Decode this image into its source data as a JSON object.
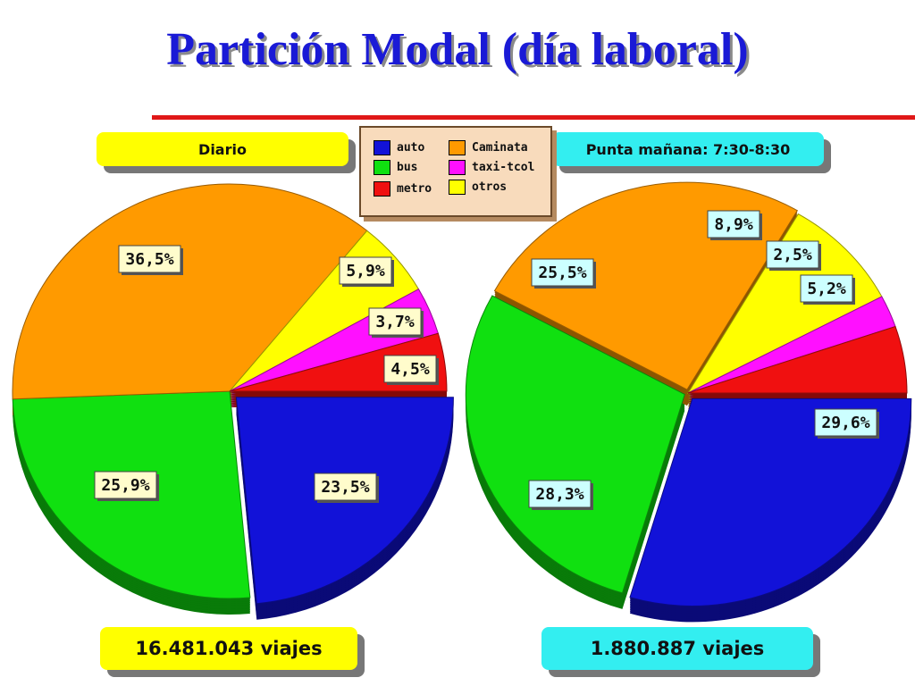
{
  "title": "Partición Modal  (día laboral)",
  "legend": {
    "items": [
      {
        "label": "auto",
        "color": "#1212d8"
      },
      {
        "label": "Caminata",
        "color": "#ff9a00"
      },
      {
        "label": "bus",
        "color": "#10e010"
      },
      {
        "label": "taxi-tcol",
        "color": "#ff10ff"
      },
      {
        "label": "metro",
        "color": "#f01010"
      },
      {
        "label": "otros",
        "color": "#ffff00"
      }
    ]
  },
  "chart_data": [
    {
      "type": "pie",
      "title": "Diario",
      "footer": "16.481.043 viajes",
      "slices": [
        {
          "label": "auto",
          "value": 23.5,
          "text": "23,5%",
          "color": "#1212d8"
        },
        {
          "label": "bus",
          "value": 25.9,
          "text": "25,9%",
          "color": "#10e010"
        },
        {
          "label": "Caminata",
          "value": 36.5,
          "text": "36,5%",
          "color": "#ff9a00"
        },
        {
          "label": "otros",
          "value": 5.9,
          "text": "5,9%",
          "color": "#ffff00"
        },
        {
          "label": "taxi-tcol",
          "value": 3.7,
          "text": "3,7%",
          "color": "#ff10ff"
        },
        {
          "label": "metro",
          "value": 4.5,
          "text": "4,5%",
          "color": "#f01010"
        }
      ]
    },
    {
      "type": "pie",
      "title": "Punta mañana: 7:30-8:30",
      "footer": "1.880.887 viajes",
      "slices": [
        {
          "label": "auto",
          "value": 29.6,
          "text": "29,6%",
          "color": "#1212d8"
        },
        {
          "label": "bus",
          "value": 28.3,
          "text": "28,3%",
          "color": "#10e010"
        },
        {
          "label": "Caminata",
          "value": 25.5,
          "text": "25,5%",
          "color": "#ff9a00"
        },
        {
          "label": "otros",
          "value": 8.9,
          "text": "8,9%",
          "color": "#ffff00"
        },
        {
          "label": "taxi-tcol",
          "value": 2.5,
          "text": "2,5%",
          "color": "#ff10ff"
        },
        {
          "label": "metro",
          "value": 5.2,
          "text": "5,2%",
          "color": "#f01010"
        }
      ]
    }
  ]
}
